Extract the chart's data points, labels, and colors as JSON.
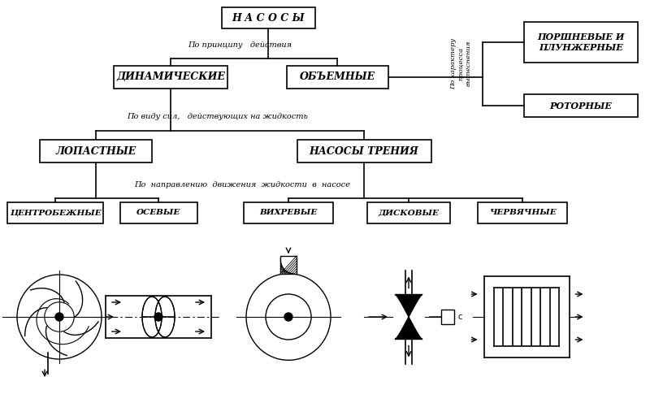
{
  "bg_color": "#ffffff",
  "title": "Н А С О С Ы",
  "label_printsip": "По принципу   действия",
  "label_vid_sil": "По виду сил,   действующих на жидкость",
  "label_harakter": "По характеру\nпроцесса\nвытеснения",
  "label_napravlenie": "По  направлению  движения  жидкости  в  насосе",
  "box_dinamicheskie": "ДИНАМИЧЕСКИЕ",
  "box_obemnye": "ОБЪЕМНЫЕ",
  "box_lopastnye": "ЛОПАСТНЫЕ",
  "box_nasosy_trenia": "НАСОСЫ ТРЕНИЯ",
  "box_tsentrobezhnye": "ЦЕНТРОБЕЖНЫЕ",
  "box_osevye": "ОСЕВЫЕ",
  "box_vikhrevye": "ВИХРЕВЫЕ",
  "box_diskovye": "ДИСКОВЫЕ",
  "box_chervyachnye": "ЧЕРВЯЧНЫЕ",
  "box_porshnye": "ПОРШНЕВЫЕ И\nПЛУНЖЕРНЫЕ",
  "box_rotornye": "РОТОРНЫЕ"
}
